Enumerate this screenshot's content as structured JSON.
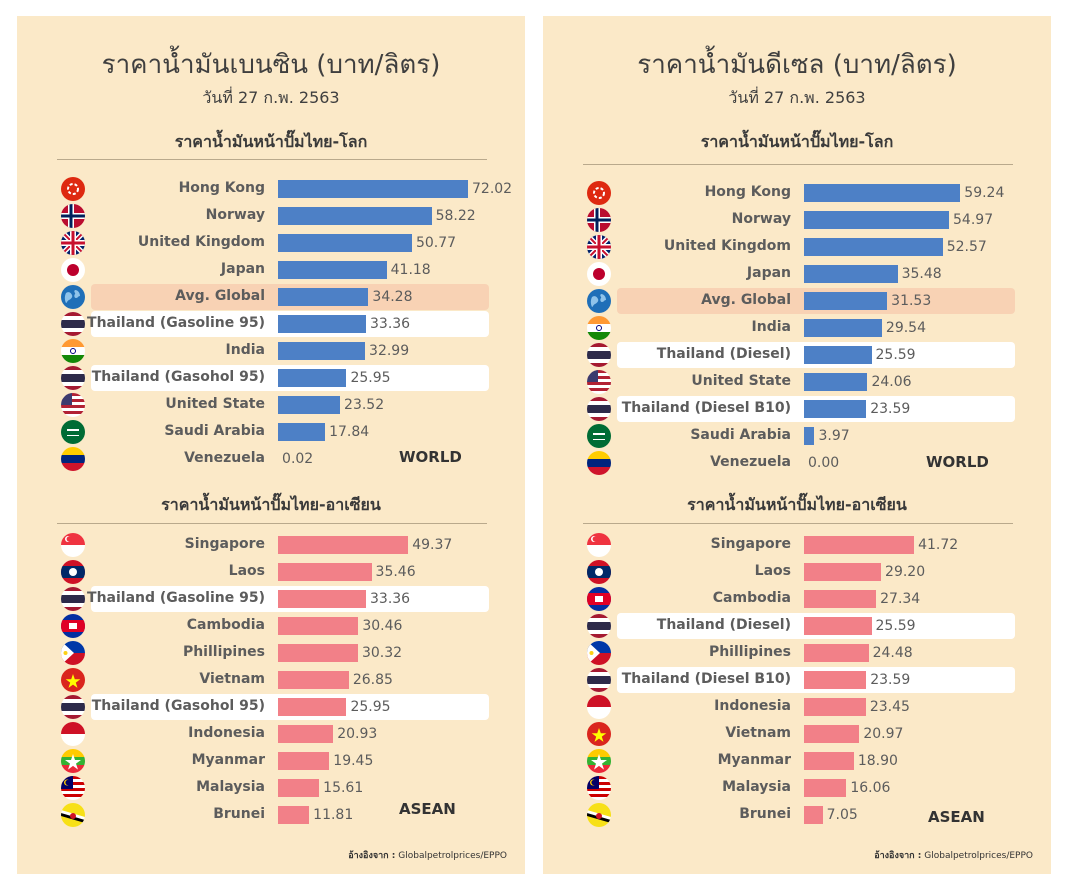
{
  "colors": {
    "world_bar": "#4d80c6",
    "asean_bar": "#f28088",
    "highlight_global": "#f8d2b4",
    "highlight_thai": "#ffffff"
  },
  "panels": [
    {
      "title": "ราคาน้ำมันเบนซิน (บาท/ลิตร)",
      "date": "วันที่ 27 ก.พ. 2563",
      "source_label": "อ้างอิงจาก :",
      "source": "Globalpetrolprices/EPPO",
      "world": {
        "heading": "ราคาน้ำมันหน้าปั๊มไทย-โลก",
        "region_label": "WORLD",
        "items": [
          {
            "country": "Hong Kong",
            "value": 72.02,
            "label": "72.02",
            "flag": "hong-kong"
          },
          {
            "country": "Norway",
            "value": 58.22,
            "label": "58.22",
            "flag": "norway"
          },
          {
            "country": "United Kingdom",
            "value": 50.77,
            "label": "50.77",
            "flag": "uk"
          },
          {
            "country": "Japan",
            "value": 41.18,
            "label": "41.18",
            "flag": "japan"
          },
          {
            "country": "Avg. Global",
            "value": 34.28,
            "label": "34.28",
            "flag": "globe",
            "highlight": "global"
          },
          {
            "country": "Thailand (Gasoline 95)",
            "value": 33.36,
            "label": "33.36",
            "flag": "thailand",
            "highlight": "thai"
          },
          {
            "country": "India",
            "value": 32.99,
            "label": "32.99",
            "flag": "india"
          },
          {
            "country": "Thailand (Gasohol 95)",
            "value": 25.95,
            "label": "25.95",
            "flag": "thailand",
            "highlight": "thai"
          },
          {
            "country": "United State",
            "value": 23.52,
            "label": "23.52",
            "flag": "usa"
          },
          {
            "country": "Saudi Arabia",
            "value": 17.84,
            "label": "17.84",
            "flag": "saudi"
          },
          {
            "country": "Venezuela",
            "value": 0.02,
            "label": "0.02",
            "flag": "venezuela"
          }
        ]
      },
      "asean": {
        "heading": "ราคาน้ำมันหน้าปั๊มไทย-อาเซียน",
        "region_label": "ASEAN",
        "items": [
          {
            "country": "Singapore",
            "value": 49.37,
            "label": "49.37",
            "flag": "singapore"
          },
          {
            "country": "Laos",
            "value": 35.46,
            "label": "35.46",
            "flag": "laos"
          },
          {
            "country": "Thailand (Gasoline 95)",
            "value": 33.36,
            "label": "33.36",
            "flag": "thailand",
            "highlight": "thai"
          },
          {
            "country": "Cambodia",
            "value": 30.46,
            "label": "30.46",
            "flag": "cambodia"
          },
          {
            "country": "Phillipines",
            "value": 30.32,
            "label": "30.32",
            "flag": "philippines"
          },
          {
            "country": "Vietnam",
            "value": 26.85,
            "label": "26.85",
            "flag": "vietnam"
          },
          {
            "country": "Thailand (Gasohol 95)",
            "value": 25.95,
            "label": "25.95",
            "flag": "thailand",
            "highlight": "thai"
          },
          {
            "country": "Indonesia",
            "value": 20.93,
            "label": "20.93",
            "flag": "indonesia"
          },
          {
            "country": "Myanmar",
            "value": 19.45,
            "label": "19.45",
            "flag": "myanmar"
          },
          {
            "country": "Malaysia",
            "value": 15.61,
            "label": "15.61",
            "flag": "malaysia"
          },
          {
            "country": "Brunei",
            "value": 11.81,
            "label": "11.81",
            "flag": "brunei"
          }
        ]
      }
    },
    {
      "title": "ราคาน้ำมันดีเซล (บาท/ลิตร)",
      "date": "วันที่ 27 ก.พ. 2563",
      "source_label": "อ้างอิงจาก :",
      "source": "Globalpetrolprices/EPPO",
      "world": {
        "heading": "ราคาน้ำมันหน้าปั๊มไทย-โลก",
        "region_label": "WORLD",
        "items": [
          {
            "country": "Hong Kong",
            "value": 59.24,
            "label": "59.24",
            "flag": "hong-kong"
          },
          {
            "country": "Norway",
            "value": 54.97,
            "label": "54.97",
            "flag": "norway"
          },
          {
            "country": "United Kingdom",
            "value": 52.57,
            "label": "52.57",
            "flag": "uk"
          },
          {
            "country": "Japan",
            "value": 35.48,
            "label": "35.48",
            "flag": "japan"
          },
          {
            "country": "Avg. Global",
            "value": 31.53,
            "label": "31.53",
            "flag": "globe",
            "highlight": "global"
          },
          {
            "country": "India",
            "value": 29.54,
            "label": "29.54",
            "flag": "india"
          },
          {
            "country": "Thailand (Diesel)",
            "value": 25.59,
            "label": "25.59",
            "flag": "thailand",
            "highlight": "thai"
          },
          {
            "country": "United State",
            "value": 24.06,
            "label": "24.06",
            "flag": "usa"
          },
          {
            "country": "Thailand (Diesel B10)",
            "value": 23.59,
            "label": "23.59",
            "flag": "thailand",
            "highlight": "thai"
          },
          {
            "country": "Saudi Arabia",
            "value": 3.97,
            "label": "3.97",
            "flag": "saudi"
          },
          {
            "country": "Venezuela",
            "value": 0.0,
            "label": "0.00",
            "flag": "venezuela"
          }
        ]
      },
      "asean": {
        "heading": "ราคาน้ำมันหน้าปั๊มไทย-อาเซียน",
        "region_label": "ASEAN",
        "items": [
          {
            "country": "Singapore",
            "value": 41.72,
            "label": "41.72",
            "flag": "singapore"
          },
          {
            "country": "Laos",
            "value": 29.2,
            "label": "29.20",
            "flag": "laos"
          },
          {
            "country": "Cambodia",
            "value": 27.34,
            "label": "27.34",
            "flag": "cambodia"
          },
          {
            "country": "Thailand (Diesel)",
            "value": 25.59,
            "label": "25.59",
            "flag": "thailand",
            "highlight": "thai"
          },
          {
            "country": "Phillipines",
            "value": 24.48,
            "label": "24.48",
            "flag": "philippines"
          },
          {
            "country": "Thailand (Diesel B10)",
            "value": 23.59,
            "label": "23.59",
            "flag": "thailand",
            "highlight": "thai"
          },
          {
            "country": "Indonesia",
            "value": 23.45,
            "label": "23.45",
            "flag": "indonesia"
          },
          {
            "country": "Vietnam",
            "value": 20.97,
            "label": "20.97",
            "flag": "vietnam"
          },
          {
            "country": "Myanmar",
            "value": 18.9,
            "label": "18.90",
            "flag": "myanmar"
          },
          {
            "country": "Malaysia",
            "value": 16.06,
            "label": "16.06",
            "flag": "malaysia"
          },
          {
            "country": "Brunei",
            "value": 7.05,
            "label": "7.05",
            "flag": "brunei"
          }
        ]
      }
    }
  ],
  "chart_data": [
    {
      "type": "bar",
      "orientation": "horizontal",
      "title": "ราคาน้ำมันเบนซิน (บาท/ลิตร) — ราคาน้ำมันหน้าปั๊มไทย-โลก",
      "categories": [
        "Hong Kong",
        "Norway",
        "United Kingdom",
        "Japan",
        "Avg. Global",
        "Thailand (Gasoline 95)",
        "India",
        "Thailand (Gasohol 95)",
        "United State",
        "Saudi Arabia",
        "Venezuela"
      ],
      "values": [
        72.02,
        58.22,
        50.77,
        41.18,
        34.28,
        33.36,
        32.99,
        25.95,
        23.52,
        17.84,
        0.02
      ],
      "xlabel": "",
      "ylabel": "",
      "legend": "WORLD"
    },
    {
      "type": "bar",
      "orientation": "horizontal",
      "title": "ราคาน้ำมันเบนซิน (บาท/ลิตร) — ราคาน้ำมันหน้าปั๊มไทย-อาเซียน",
      "categories": [
        "Singapore",
        "Laos",
        "Thailand (Gasoline 95)",
        "Cambodia",
        "Phillipines",
        "Vietnam",
        "Thailand (Gasohol 95)",
        "Indonesia",
        "Myanmar",
        "Malaysia",
        "Brunei"
      ],
      "values": [
        49.37,
        35.46,
        33.36,
        30.46,
        30.32,
        26.85,
        25.95,
        20.93,
        19.45,
        15.61,
        11.81
      ],
      "xlabel": "",
      "ylabel": "",
      "legend": "ASEAN"
    },
    {
      "type": "bar",
      "orientation": "horizontal",
      "title": "ราคาน้ำมันดีเซล (บาท/ลิตร) — ราคาน้ำมันหน้าปั๊มไทย-โลก",
      "categories": [
        "Hong Kong",
        "Norway",
        "United Kingdom",
        "Japan",
        "Avg. Global",
        "India",
        "Thailand (Diesel)",
        "United State",
        "Thailand (Diesel B10)",
        "Saudi Arabia",
        "Venezuela"
      ],
      "values": [
        59.24,
        54.97,
        52.57,
        35.48,
        31.53,
        29.54,
        25.59,
        24.06,
        23.59,
        3.97,
        0.0
      ],
      "xlabel": "",
      "ylabel": "",
      "legend": "WORLD"
    },
    {
      "type": "bar",
      "orientation": "horizontal",
      "title": "ราคาน้ำมันดีเซล (บาท/ลิตร) — ราคาน้ำมันหน้าปั๊มไทย-อาเซียน",
      "categories": [
        "Singapore",
        "Laos",
        "Cambodia",
        "Thailand (Diesel)",
        "Phillipines",
        "Thailand (Diesel B10)",
        "Indonesia",
        "Vietnam",
        "Myanmar",
        "Malaysia",
        "Brunei"
      ],
      "values": [
        41.72,
        29.2,
        27.34,
        25.59,
        24.48,
        23.59,
        23.45,
        20.97,
        18.9,
        16.06,
        7.05
      ],
      "xlabel": "",
      "ylabel": "",
      "legend": "ASEAN"
    }
  ]
}
